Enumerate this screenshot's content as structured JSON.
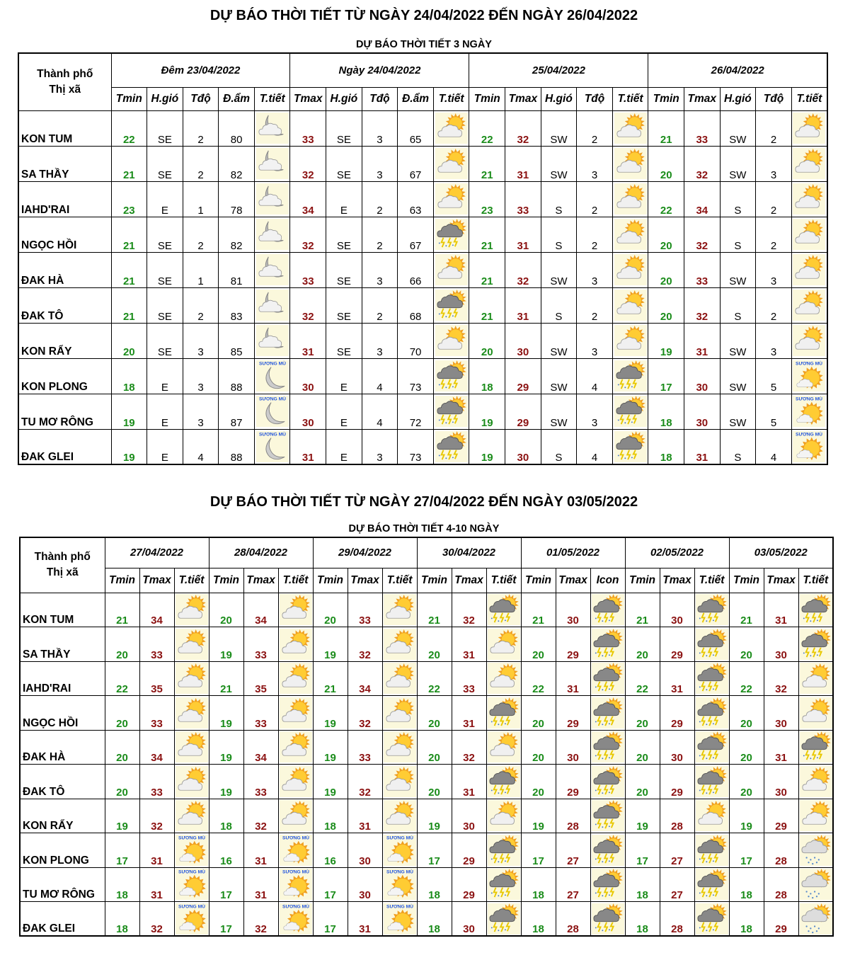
{
  "colors": {
    "tmin": "#1a8c1a",
    "tmax": "#8b1111",
    "icon_bg": "#fbf8dc",
    "fog_label": "#2255dd"
  },
  "fog_label": "SƯƠNG MÙ",
  "icon_legend": {
    "mc": "moon-cloud-icon",
    "mf": "moon-fog-icon",
    "sc": "sun-cloud-icon",
    "st": "thunderstorm-icon",
    "fs": "fog-sun-icon",
    "rs": "rain-sun-icon"
  },
  "table1": {
    "title": "DỰ BÁO THỜI TIẾT TỪ NGÀY 24/04/2022 ĐẾN NGÀY 26/04/2022",
    "subtitle": "DỰ BÁO THỜI TIẾT 3 NGÀY",
    "city_header": [
      "Thành phố",
      "Thị xã"
    ],
    "periods": [
      {
        "label": "Đêm 23/04/2022",
        "columns": [
          "Tmin",
          "H.gió",
          "Tđộ",
          "Đ.ẩm",
          "T.tiết"
        ]
      },
      {
        "label": "Ngày 24/04/2022",
        "columns": [
          "Tmax",
          "H.gió",
          "Tđộ",
          "Đ.ẩm",
          "T.tiết"
        ]
      },
      {
        "label": "25/04/2022",
        "columns": [
          "Tmin",
          "Tmax",
          "H.gió",
          "Tđộ",
          "T.tiết"
        ]
      },
      {
        "label": "26/04/2022",
        "columns": [
          "Tmin",
          "Tmax",
          "H.gió",
          "Tđộ",
          "T.tiết"
        ]
      }
    ],
    "rows": [
      {
        "city": "KON TUM",
        "cells": [
          "22",
          "SE",
          "2",
          "80",
          "mc",
          "33",
          "SE",
          "3",
          "65",
          "sc",
          "22",
          "32",
          "SW",
          "2",
          "sc",
          "21",
          "33",
          "SW",
          "2",
          "sc"
        ]
      },
      {
        "city": "SA THẦY",
        "cells": [
          "21",
          "SE",
          "2",
          "82",
          "mc",
          "32",
          "SE",
          "3",
          "67",
          "sc",
          "21",
          "31",
          "SW",
          "3",
          "sc",
          "20",
          "32",
          "SW",
          "3",
          "sc"
        ]
      },
      {
        "city": "IAHD'RAI",
        "cells": [
          "23",
          "E",
          "1",
          "78",
          "mc",
          "34",
          "E",
          "2",
          "63",
          "sc",
          "23",
          "33",
          "S",
          "2",
          "sc",
          "22",
          "34",
          "S",
          "2",
          "sc"
        ]
      },
      {
        "city": "NGỌC HỒI",
        "cells": [
          "21",
          "SE",
          "2",
          "82",
          "mc",
          "32",
          "SE",
          "2",
          "67",
          "st",
          "21",
          "31",
          "S",
          "2",
          "sc",
          "20",
          "32",
          "S",
          "2",
          "sc"
        ]
      },
      {
        "city": "ĐAK HÀ",
        "cells": [
          "21",
          "SE",
          "1",
          "81",
          "mc",
          "33",
          "SE",
          "3",
          "66",
          "sc",
          "21",
          "32",
          "SW",
          "3",
          "sc",
          "20",
          "33",
          "SW",
          "3",
          "sc"
        ]
      },
      {
        "city": "ĐAK TÔ",
        "cells": [
          "21",
          "SE",
          "2",
          "83",
          "mc",
          "32",
          "SE",
          "2",
          "68",
          "st",
          "21",
          "31",
          "S",
          "2",
          "sc",
          "20",
          "32",
          "S",
          "2",
          "sc"
        ]
      },
      {
        "city": "KON RẨY",
        "cells": [
          "20",
          "SE",
          "3",
          "85",
          "mc",
          "31",
          "SE",
          "3",
          "70",
          "sc",
          "20",
          "30",
          "SW",
          "3",
          "sc",
          "19",
          "31",
          "SW",
          "3",
          "sc"
        ]
      },
      {
        "city": "KON PLONG",
        "cells": [
          "18",
          "E",
          "3",
          "88",
          "mf",
          "30",
          "E",
          "4",
          "73",
          "st",
          "18",
          "29",
          "SW",
          "4",
          "st",
          "17",
          "30",
          "SW",
          "5",
          "fs"
        ]
      },
      {
        "city": "TU MƠ RÔNG",
        "cells": [
          "19",
          "E",
          "3",
          "87",
          "mf",
          "30",
          "E",
          "4",
          "72",
          "st",
          "19",
          "29",
          "SW",
          "3",
          "st",
          "18",
          "30",
          "SW",
          "5",
          "fs"
        ]
      },
      {
        "city": "ĐAK GLEI",
        "cells": [
          "19",
          "E",
          "4",
          "88",
          "mf",
          "31",
          "E",
          "3",
          "73",
          "st",
          "19",
          "30",
          "S",
          "4",
          "st",
          "18",
          "31",
          "S",
          "4",
          "fs"
        ]
      }
    ]
  },
  "table2": {
    "title": "DỰ BÁO THỜI TIẾT TỪ NGÀY 27/04/2022 ĐẾN NGÀY 03/05/2022",
    "subtitle": "DỰ BÁO THỜI TIẾT 4-10 NGÀY",
    "city_header": [
      "Thành phố",
      "Thị xã"
    ],
    "periods": [
      {
        "label": "27/04/2022",
        "columns": [
          "Tmin",
          "Tmax",
          "T.tiết"
        ]
      },
      {
        "label": "28/04/2022",
        "columns": [
          "Tmin",
          "Tmax",
          "T.tiết"
        ]
      },
      {
        "label": "29/04/2022",
        "columns": [
          "Tmin",
          "Tmax",
          "T.tiết"
        ]
      },
      {
        "label": "30/04/2022",
        "columns": [
          "Tmin",
          "Tmax",
          "T.tiết"
        ]
      },
      {
        "label": "01/05/2022",
        "columns": [
          "Tmin",
          "Tmax",
          "Icon"
        ]
      },
      {
        "label": "02/05/2022",
        "columns": [
          "Tmin",
          "Tmax",
          "T.tiết"
        ]
      },
      {
        "label": "03/05/2022",
        "columns": [
          "Tmin",
          "Tmax",
          "T.tiết"
        ]
      }
    ],
    "rows": [
      {
        "city": "KON TUM",
        "cells": [
          "21",
          "34",
          "sc",
          "20",
          "34",
          "sc",
          "20",
          "33",
          "sc",
          "21",
          "32",
          "st",
          "21",
          "30",
          "st",
          "21",
          "30",
          "st",
          "21",
          "31",
          "st"
        ]
      },
      {
        "city": "SA THẦY",
        "cells": [
          "20",
          "33",
          "sc",
          "19",
          "33",
          "sc",
          "19",
          "32",
          "sc",
          "20",
          "31",
          "sc",
          "20",
          "29",
          "st",
          "20",
          "29",
          "st",
          "20",
          "30",
          "st"
        ]
      },
      {
        "city": "IAHD'RAI",
        "cells": [
          "22",
          "35",
          "sc",
          "21",
          "35",
          "sc",
          "21",
          "34",
          "sc",
          "22",
          "33",
          "sc",
          "22",
          "31",
          "st",
          "22",
          "31",
          "st",
          "22",
          "32",
          "sc"
        ]
      },
      {
        "city": "NGỌC HỒI",
        "cells": [
          "20",
          "33",
          "sc",
          "19",
          "33",
          "sc",
          "19",
          "32",
          "sc",
          "20",
          "31",
          "st",
          "20",
          "29",
          "st",
          "20",
          "29",
          "st",
          "20",
          "30",
          "sc"
        ]
      },
      {
        "city": "ĐAK HÀ",
        "cells": [
          "20",
          "34",
          "sc",
          "19",
          "34",
          "sc",
          "19",
          "33",
          "sc",
          "20",
          "32",
          "sc",
          "20",
          "30",
          "st",
          "20",
          "30",
          "st",
          "20",
          "31",
          "st"
        ]
      },
      {
        "city": "ĐAK TÔ",
        "cells": [
          "20",
          "33",
          "sc",
          "19",
          "33",
          "sc",
          "19",
          "32",
          "sc",
          "20",
          "31",
          "st",
          "20",
          "29",
          "st",
          "20",
          "29",
          "st",
          "20",
          "30",
          "sc"
        ]
      },
      {
        "city": "KON RẨY",
        "cells": [
          "19",
          "32",
          "sc",
          "18",
          "32",
          "sc",
          "18",
          "31",
          "sc",
          "19",
          "30",
          "sc",
          "19",
          "28",
          "st",
          "19",
          "28",
          "sc",
          "19",
          "29",
          "sc"
        ]
      },
      {
        "city": "KON PLONG",
        "cells": [
          "17",
          "31",
          "fs",
          "16",
          "31",
          "fs",
          "16",
          "30",
          "fs",
          "17",
          "29",
          "st",
          "17",
          "27",
          "st",
          "17",
          "27",
          "st",
          "17",
          "28",
          "rs"
        ]
      },
      {
        "city": "TU MƠ RÔNG",
        "cells": [
          "18",
          "31",
          "fs",
          "17",
          "31",
          "fs",
          "17",
          "30",
          "fs",
          "18",
          "29",
          "st",
          "18",
          "27",
          "st",
          "18",
          "27",
          "st",
          "18",
          "28",
          "rs"
        ]
      },
      {
        "city": "ĐAK GLEI",
        "cells": [
          "18",
          "32",
          "fs",
          "17",
          "32",
          "fs",
          "17",
          "31",
          "fs",
          "18",
          "30",
          "st",
          "18",
          "28",
          "st",
          "18",
          "28",
          "st",
          "18",
          "29",
          "rs"
        ]
      }
    ]
  }
}
